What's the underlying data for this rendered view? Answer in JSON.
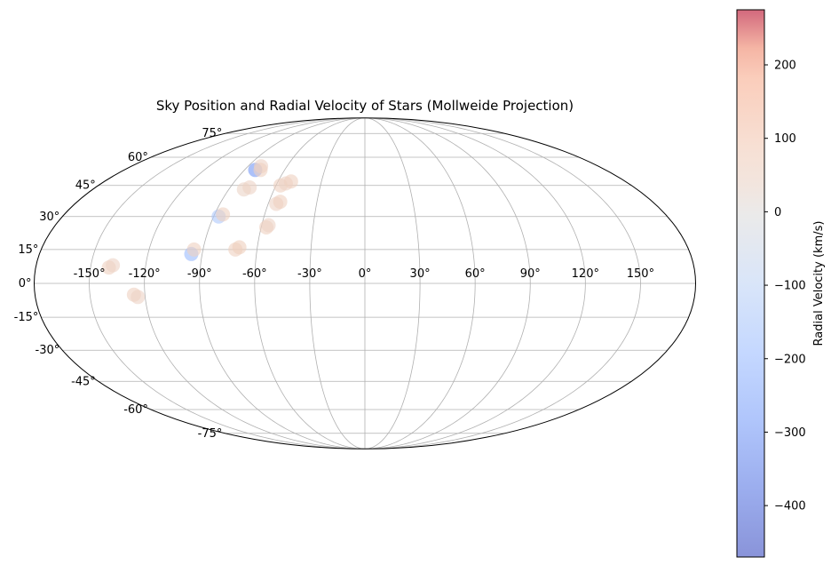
{
  "chart_data": {
    "type": "scatter",
    "projection": "mollweide",
    "title": "Sky Position and Radial Velocity of Stars (Mollweide Projection)",
    "grid": true,
    "lon_ticks": [
      -150,
      -120,
      -90,
      -60,
      -30,
      0,
      30,
      60,
      90,
      120,
      150
    ],
    "lon_tick_labels": [
      "-150°",
      "-120°",
      "-90°",
      "-60°",
      "-30°",
      "0°",
      "30°",
      "60°",
      "90°",
      "120°",
      "150°"
    ],
    "lat_ticks": [
      75,
      60,
      45,
      30,
      15,
      0,
      -15,
      -30,
      -45,
      -60,
      -75
    ],
    "lat_tick_labels": [
      "75°",
      "60°",
      "45°",
      "30°",
      "15°",
      "0°",
      "-15°",
      "-30°",
      "-45°",
      "-60°",
      "-75°"
    ],
    "points": [
      {
        "lon": -140,
        "lat": 7,
        "rv": 60
      },
      {
        "lon": -138,
        "lat": 8,
        "rv": 50
      },
      {
        "lon": -126,
        "lat": -5,
        "rv": 60
      },
      {
        "lon": -124,
        "lat": -6,
        "rv": 50
      },
      {
        "lon": -96,
        "lat": 13,
        "rv": -200
      },
      {
        "lon": -95,
        "lat": 15,
        "rv": 60
      },
      {
        "lon": -87,
        "lat": 30,
        "rv": -150
      },
      {
        "lon": -85,
        "lat": 31,
        "rv": 60
      },
      {
        "lon": -82,
        "lat": 53,
        "rv": -300
      },
      {
        "lon": -80,
        "lat": 55,
        "rv": 50
      },
      {
        "lon": -78,
        "lat": 53,
        "rv": 60
      },
      {
        "lon": -80,
        "lat": 43,
        "rv": 40
      },
      {
        "lon": -77,
        "lat": 44,
        "rv": 50
      },
      {
        "lon": -72,
        "lat": 15,
        "rv": 60
      },
      {
        "lon": -70,
        "lat": 16,
        "rv": 70
      },
      {
        "lon": -57,
        "lat": 45,
        "rv": 60
      },
      {
        "lon": -54,
        "lat": 46,
        "rv": 50
      },
      {
        "lon": -51,
        "lat": 47,
        "rv": 60
      },
      {
        "lon": -55,
        "lat": 36,
        "rv": 50
      },
      {
        "lon": -53,
        "lat": 37,
        "rv": 60
      },
      {
        "lon": -57,
        "lat": 25,
        "rv": 60
      },
      {
        "lon": -56,
        "lat": 26,
        "rv": 50
      }
    ],
    "colorbar": {
      "label": "Radial Velocity (km/s)",
      "min": -470,
      "max": 275,
      "ticks": [
        -400,
        -300,
        -200,
        -100,
        0,
        100,
        200
      ],
      "tick_labels": [
        "−400",
        "−300",
        "−200",
        "−100",
        "0",
        "100",
        "200"
      ],
      "colormap": "coolwarm",
      "alpha": 0.6
    }
  }
}
